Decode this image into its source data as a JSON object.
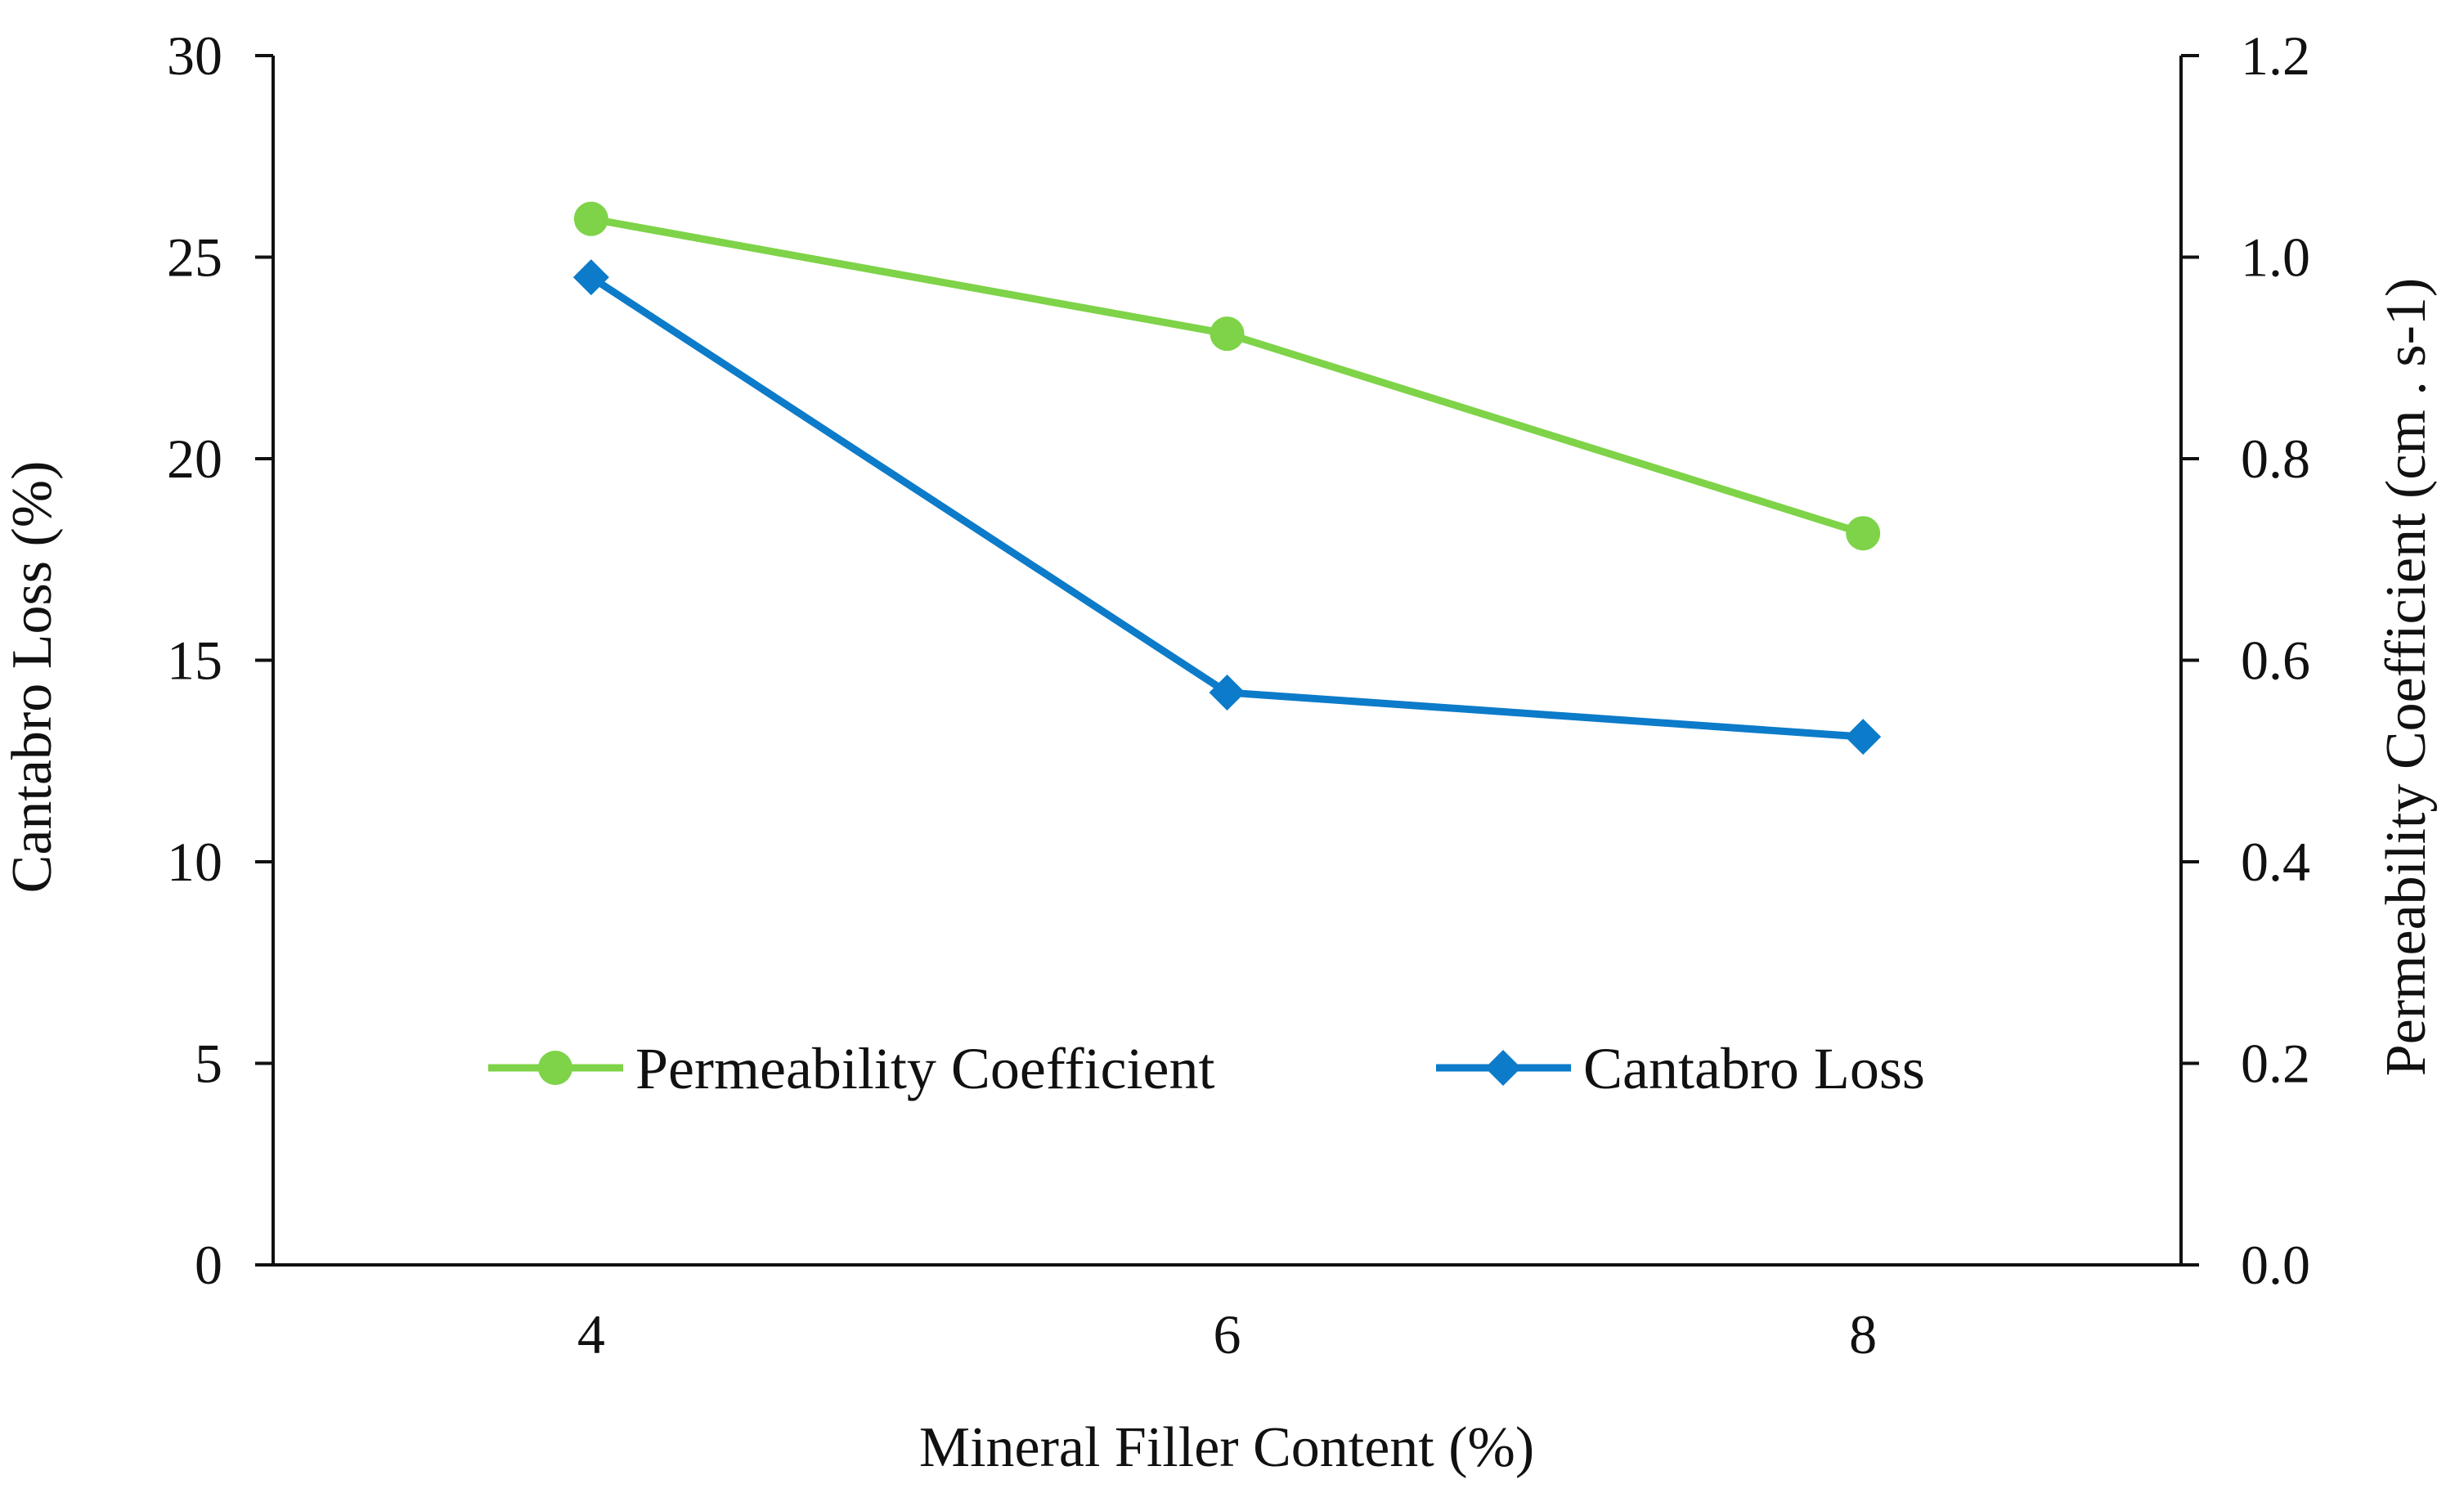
{
  "chart_data": {
    "type": "line",
    "title": "",
    "xlabel": "Mineral Filler Content (%)",
    "ylabel_left": "Cantabro Loss (%)",
    "ylabel_right": "Permeability Coefficient (cm . s-1)",
    "x": [
      4,
      6,
      8
    ],
    "x_tick_labels": [
      "4",
      "6",
      "8"
    ],
    "xlim": [
      3,
      9
    ],
    "ylim_left": [
      0,
      30
    ],
    "ylim_right": [
      0,
      1.2
    ],
    "left_ticks": [
      "0",
      "5",
      "10",
      "15",
      "20",
      "25",
      "30"
    ],
    "right_ticks": [
      "0.0",
      "0.2",
      "0.4",
      "0.6",
      "0.8",
      "1.0",
      "1.2"
    ],
    "grid": false,
    "legend_position": "bottom-center",
    "series": [
      {
        "name": "Permeability Coefficient",
        "axis": "right",
        "marker": "circle",
        "color": "#7ED348",
        "values": [
          1.038,
          0.924,
          0.726
        ]
      },
      {
        "name": "Cantabro Loss",
        "axis": "left",
        "marker": "diamond",
        "color": "#0C7BC9",
        "values": [
          24.5,
          14.2,
          13.1
        ]
      }
    ]
  }
}
